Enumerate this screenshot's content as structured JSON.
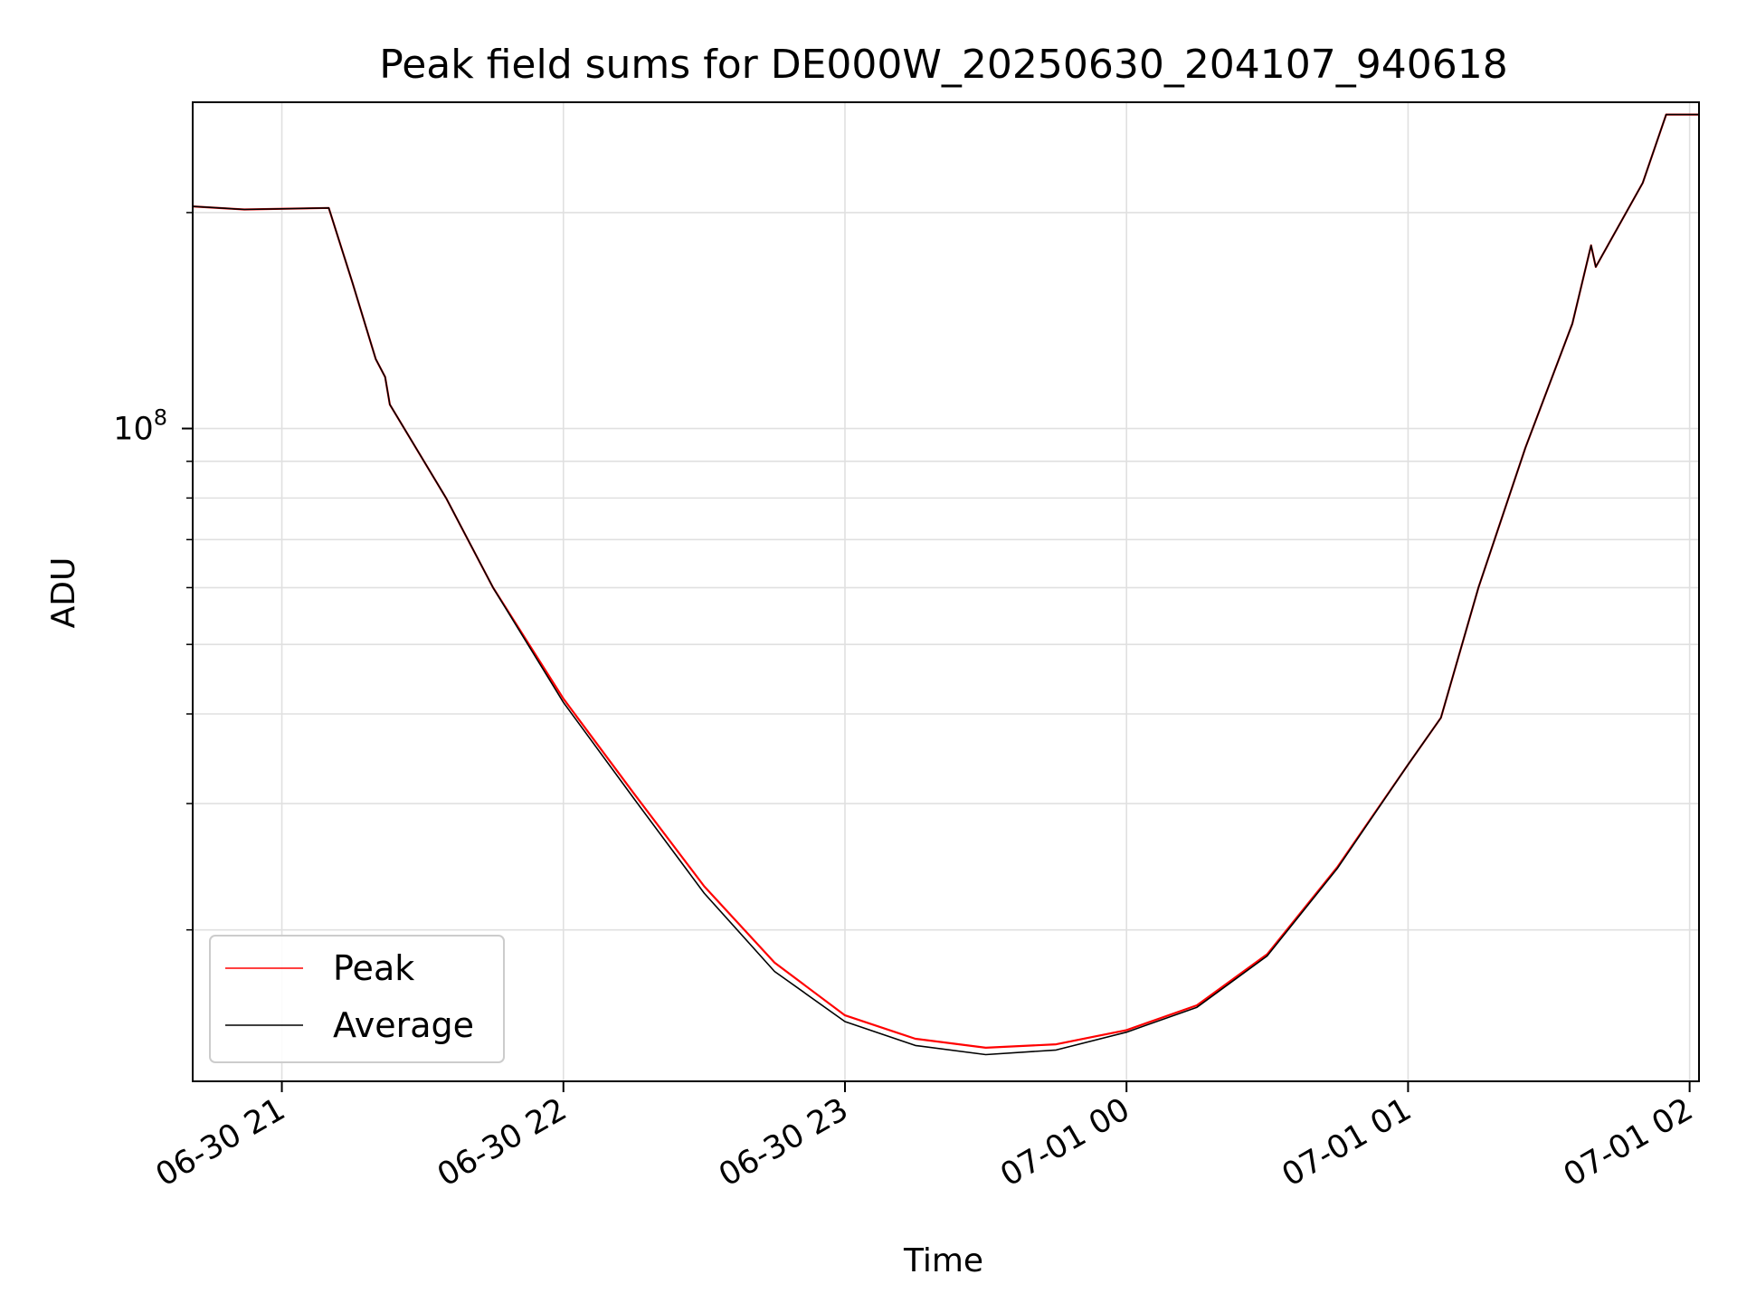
{
  "chart_data": {
    "type": "line",
    "title": "Peak field sums for DE000W_20250630_204107_940618",
    "xlabel": "Time",
    "ylabel": "ADU",
    "yscale": "log",
    "grid": true,
    "legend_position": "lower-left",
    "xlim": [
      "2025-06-30 20:41",
      "2025-07-01 02:02"
    ],
    "ylim": [
      12300000,
      285000000
    ],
    "x_ticks": [
      {
        "time": "2025-06-30 21:00",
        "label": "06-30 21"
      },
      {
        "time": "2025-06-30 22:00",
        "label": "06-30 22"
      },
      {
        "time": "2025-06-30 23:00",
        "label": "06-30 23"
      },
      {
        "time": "2025-07-01 00:00",
        "label": "07-01 00"
      },
      {
        "time": "2025-07-01 01:00",
        "label": "07-01 01"
      },
      {
        "time": "2025-07-01 02:00",
        "label": "07-01 02"
      }
    ],
    "y_major_ticks": [
      {
        "value": 100000000,
        "base": "10",
        "exponent": "8"
      }
    ],
    "y_minor_ticks": [
      20000000,
      30000000,
      40000000,
      50000000,
      60000000,
      70000000,
      80000000,
      90000000,
      200000000
    ],
    "series": [
      {
        "name": "Peak",
        "color": "#ff0000",
        "x": [
          "2025-06-30 20:41",
          "2025-06-30 20:52",
          "2025-06-30 21:10",
          "2025-06-30 21:15",
          "2025-06-30 21:20",
          "2025-06-30 21:22",
          "2025-06-30 21:23",
          "2025-06-30 21:35",
          "2025-06-30 21:45",
          "2025-06-30 22:00",
          "2025-06-30 22:15",
          "2025-06-30 22:30",
          "2025-06-30 22:45",
          "2025-06-30 23:00",
          "2025-06-30 23:15",
          "2025-06-30 23:30",
          "2025-06-30 23:45",
          "2025-07-01 00:00",
          "2025-07-01 00:15",
          "2025-07-01 00:30",
          "2025-07-01 00:45",
          "2025-07-01 01:00",
          "2025-07-01 01:07",
          "2025-07-01 01:15",
          "2025-07-01 01:25",
          "2025-07-01 01:35",
          "2025-07-01 01:39",
          "2025-07-01 01:40",
          "2025-07-01 01:50",
          "2025-07-01 01:55",
          "2025-07-01 02:02"
        ],
        "y": [
          204000000,
          202000000,
          203000000,
          160000000,
          125000000,
          118000000,
          108000000,
          80000000,
          60000000,
          42000000,
          31000000,
          23000000,
          18000000,
          15200000,
          14100000,
          13700000,
          13850000,
          14500000,
          15700000,
          18500000,
          24500000,
          34000000,
          39500000,
          60000000,
          94000000,
          140000000,
          180000000,
          168000000,
          220000000,
          274000000,
          274000000
        ]
      },
      {
        "name": "Average",
        "color": "#000000",
        "x": [
          "2025-06-30 20:41",
          "2025-06-30 20:52",
          "2025-06-30 21:10",
          "2025-06-30 21:15",
          "2025-06-30 21:20",
          "2025-06-30 21:22",
          "2025-06-30 21:23",
          "2025-06-30 21:35",
          "2025-06-30 21:45",
          "2025-06-30 22:00",
          "2025-06-30 22:15",
          "2025-06-30 22:30",
          "2025-06-30 22:45",
          "2025-06-30 23:00",
          "2025-06-30 23:15",
          "2025-06-30 23:30",
          "2025-06-30 23:45",
          "2025-07-01 00:00",
          "2025-07-01 00:15",
          "2025-07-01 00:30",
          "2025-07-01 00:45",
          "2025-07-01 01:00",
          "2025-07-01 01:07",
          "2025-07-01 01:15",
          "2025-07-01 01:25",
          "2025-07-01 01:35",
          "2025-07-01 01:39",
          "2025-07-01 01:40",
          "2025-07-01 01:50",
          "2025-07-01 01:55",
          "2025-07-01 02:02"
        ],
        "y": [
          204000000,
          202000000,
          203000000,
          160000000,
          125000000,
          118000000,
          108000000,
          80000000,
          60000000,
          41500000,
          30500000,
          22500000,
          17500000,
          14900000,
          13800000,
          13400000,
          13600000,
          14400000,
          15600000,
          18400000,
          24400000,
          34000000,
          39500000,
          60000000,
          94000000,
          140000000,
          180000000,
          168000000,
          220000000,
          274000000,
          274000000
        ]
      }
    ],
    "annotations": []
  }
}
